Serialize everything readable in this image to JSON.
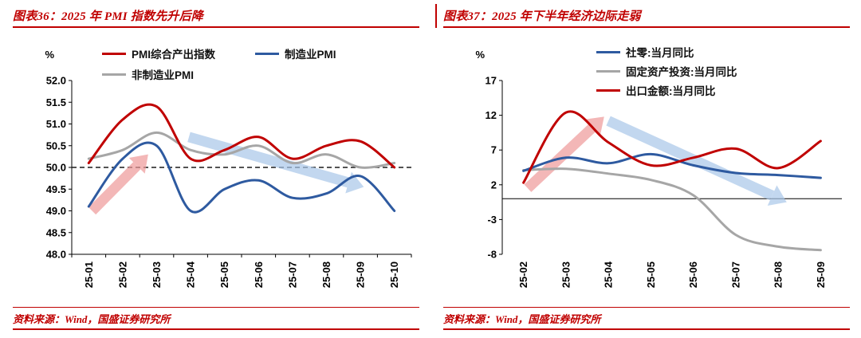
{
  "page": {
    "background": "#ffffff",
    "accent_color": "#C00000"
  },
  "panels": [
    {
      "title": "图表36：2025 年 PMI 指数先升后降",
      "source": "资料来源：Wind，国盛证券研究所"
    },
    {
      "title": "图表37：2025 年下半年经济边际走弱",
      "source": "资料来源：Wind，国盛证券研究所"
    }
  ],
  "chart_data": [
    {
      "type": "line",
      "title": "2025 年 PMI 指数先升后降",
      "unit_label": "%",
      "ylim": [
        48.0,
        52.0
      ],
      "yticks": [
        52.0,
        51.5,
        51.0,
        50.5,
        50.0,
        49.5,
        49.0,
        48.5,
        48.0
      ],
      "ytick_decimals": 1,
      "reference_line": 50.0,
      "bottom_axis": true,
      "grid": false,
      "legend_position": "top-left",
      "categories": [
        "25-01",
        "25-02",
        "25-03",
        "25-04",
        "25-05",
        "25-06",
        "25-07",
        "25-08",
        "25-09",
        "25-10"
      ],
      "series": [
        {
          "name": "PMI综合产出指数",
          "color": "#C00000",
          "values": [
            50.1,
            51.1,
            51.4,
            50.2,
            50.4,
            50.7,
            50.2,
            50.5,
            50.6,
            50.0
          ]
        },
        {
          "name": "制造业PMI",
          "color": "#2E5AA0",
          "values": [
            49.1,
            50.2,
            50.5,
            49.0,
            49.5,
            49.7,
            49.3,
            49.4,
            49.8,
            49.0
          ]
        },
        {
          "name": "非制造业PMI",
          "color": "#A6A6A6",
          "values": [
            50.2,
            50.4,
            50.8,
            50.4,
            50.3,
            50.5,
            50.1,
            50.3,
            50.0,
            50.1
          ]
        }
      ],
      "annotations": [
        {
          "type": "arrow",
          "direction": "up",
          "from": [
            0.1,
            49.0
          ],
          "to": [
            1.75,
            50.3
          ],
          "color": "#EE9A9A"
        },
        {
          "type": "arrow",
          "direction": "down",
          "from": [
            2.95,
            50.7
          ],
          "to": [
            8.1,
            49.55
          ],
          "color": "#A9C7E9"
        }
      ]
    },
    {
      "type": "line",
      "title": "2025 年下半年经济边际走弱",
      "unit_label": "%",
      "ylim": [
        -8,
        17
      ],
      "yticks": [
        17,
        12,
        7,
        2,
        -3,
        -8
      ],
      "ytick_decimals": 0,
      "baseline": 0,
      "bottom_axis": false,
      "grid": false,
      "legend_position": "top-right",
      "categories": [
        "25-02",
        "25-03",
        "25-04",
        "25-05",
        "25-06",
        "25-07",
        "25-08",
        "25-09"
      ],
      "series": [
        {
          "name": "社零:当月同比",
          "color": "#2E5AA0",
          "values": [
            4.0,
            5.9,
            5.1,
            6.4,
            4.8,
            3.7,
            3.4,
            3.0
          ]
        },
        {
          "name": "固定资产投资:当月同比",
          "color": "#A6A6A6",
          "values": [
            4.1,
            4.3,
            3.6,
            2.7,
            0.5,
            -5.2,
            -6.9,
            -7.4
          ]
        },
        {
          "name": "出口金额:当月同比",
          "color": "#C00000",
          "values": [
            2.3,
            12.4,
            8.1,
            4.8,
            5.9,
            7.2,
            4.4,
            8.3
          ]
        }
      ],
      "annotations": [
        {
          "type": "arrow",
          "direction": "up",
          "from": [
            0.1,
            1.5
          ],
          "to": [
            1.9,
            11.8
          ],
          "color": "#EE9A9A"
        },
        {
          "type": "arrow",
          "direction": "down",
          "from": [
            2.0,
            11.2
          ],
          "to": [
            6.2,
            -0.5
          ],
          "color": "#A9C7E9"
        }
      ]
    }
  ]
}
